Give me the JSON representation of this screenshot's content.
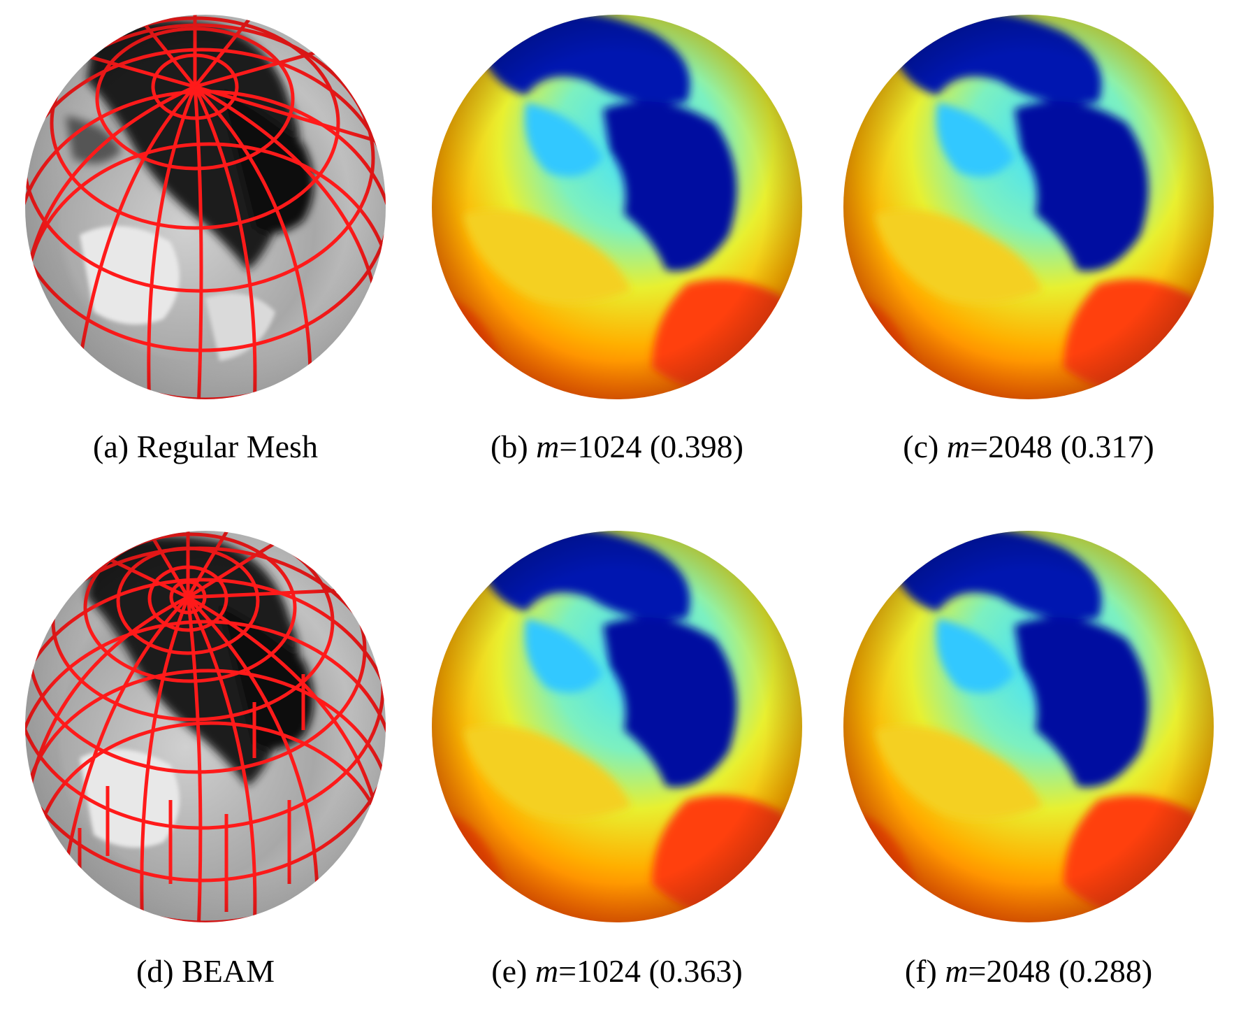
{
  "panels": [
    {
      "id": "a",
      "tag": "(a)",
      "label": "Regular Mesh",
      "var": "",
      "value": "",
      "score": "",
      "kind": "mesh-regular"
    },
    {
      "id": "b",
      "tag": "(b)",
      "label": "",
      "var": "m",
      "value": "=1024",
      "score": "(0.398)",
      "kind": "heat"
    },
    {
      "id": "c",
      "tag": "(c)",
      "label": "",
      "var": "m",
      "value": "=2048",
      "score": "(0.317)",
      "kind": "heat"
    },
    {
      "id": "d",
      "tag": "(d)",
      "label": "BEAM",
      "var": "",
      "value": "",
      "score": "",
      "kind": "mesh-beam"
    },
    {
      "id": "e",
      "tag": "(e)",
      "label": "",
      "var": "m",
      "value": "=1024",
      "score": "(0.363)",
      "kind": "heat"
    },
    {
      "id": "f",
      "tag": "(f)",
      "label": "",
      "var": "m",
      "value": "=2048",
      "score": "(0.288)",
      "kind": "heat"
    }
  ],
  "colors": {
    "mesh_line": "#ff1a1a",
    "heat_cold": "#0010a0",
    "heat_cool": "#2fd6ff",
    "heat_mid": "#d6ff3a",
    "heat_warm": "#ffb000",
    "heat_hot": "#ff3300"
  }
}
